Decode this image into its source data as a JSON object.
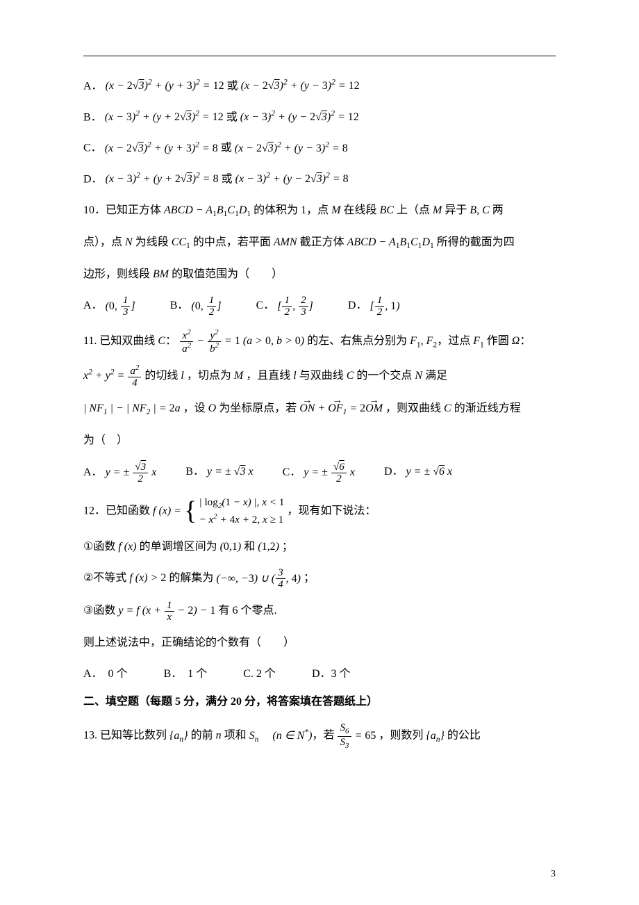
{
  "colors": {
    "text": "#000000",
    "background": "#ffffff",
    "rule": "#000000"
  },
  "q9_choices": {
    "A": "(x − 2√3)² + (y + 3)² = 12 或 (x − 2√3)² + (y − 3)² = 12",
    "B": "(x − 3)² + (y + 2√3)² = 12 或 (x − 3)² + (y − 2√3)² = 12",
    "C": "(x − 2√3)² + (y + 3)² = 8 或 (x − 2√3)² + (y − 3)² = 8",
    "D": "(x − 3)² + (y + 2√3)² = 8 或 (x − 3)² + (y − 2√3)² = 8"
  },
  "q10": {
    "stem_l1": "10．已知正方体 ABCD − A₁B₁C₁D₁ 的体积为 1，点 M 在线段 BC 上（点 M 异于 B, C 两",
    "stem_l2": "点），点 N 为线段 CC₁ 的中点，若平面 AMN 截正方体 ABCD − A₁B₁C₁D₁ 所得的截面为四",
    "stem_l3": "边形，则线段 BM 的取值范围为（　　）",
    "choices": {
      "A": "(0, 1/3]",
      "B": "(0, 1/2]",
      "C": "[1/2, 2/3]",
      "D": "[1/2, 1)"
    }
  },
  "q11": {
    "stem_l1": "11. 已知双曲线 C ：x²/a² − y²/b² = 1 (a > 0, b > 0) 的左、右焦点分别为 F₁, F₂，过点 F₁ 作圆 Ω ：",
    "stem_l2": "x² + y² = a²/4 的切线 l ，切点为 M ，且直线 l 与双曲线 C 的一个交点 N 满足",
    "stem_l3": "| NF₁ | − | NF₂ | = 2a ，设 O 为坐标原点，若 ON⃗ + OF₁⃗ = 2OM⃗ ，则双曲线 C 的渐近线方程",
    "stem_l4": "为（　）",
    "choices": {
      "A": "y = ± (√3/2) x",
      "B": "y = ± √3 x",
      "C": "y = ± (√6/2) x",
      "D": "y = ± √6 x"
    }
  },
  "q12": {
    "stem": "12．已知函数 f(x) = { |log₂(1−x)|, x<1 ; −x²+4x+2, x≥1 }，现有如下说法：",
    "s1": "①函数 f(x) 的单调增区间为 (0,1) 和 (1,2) ；",
    "s2": "②不等式 f(x) > 2 的解集为 (−∞,−3) ∪ (3/4, 4) ；",
    "s3": "③函数 y = f(x + 1/x − 2) − 1 有 6 个零点.",
    "q": "则上述说法中，正确结论的个数有（　　）",
    "choices": {
      "A": "0 个",
      "B": "1 个",
      "C": "2 个",
      "D": "3 个"
    }
  },
  "section2_title": "二、填空题（每题 5 分，满分 20 分，将答案填在答题纸上）",
  "q13": {
    "stem": "13. 已知等比数列 {aₙ} 的前 n 项和 Sₙ （n ∈ N*），若 S₆/S₃ = 65 ，则数列 {aₙ} 的公比"
  },
  "page_number": "3"
}
